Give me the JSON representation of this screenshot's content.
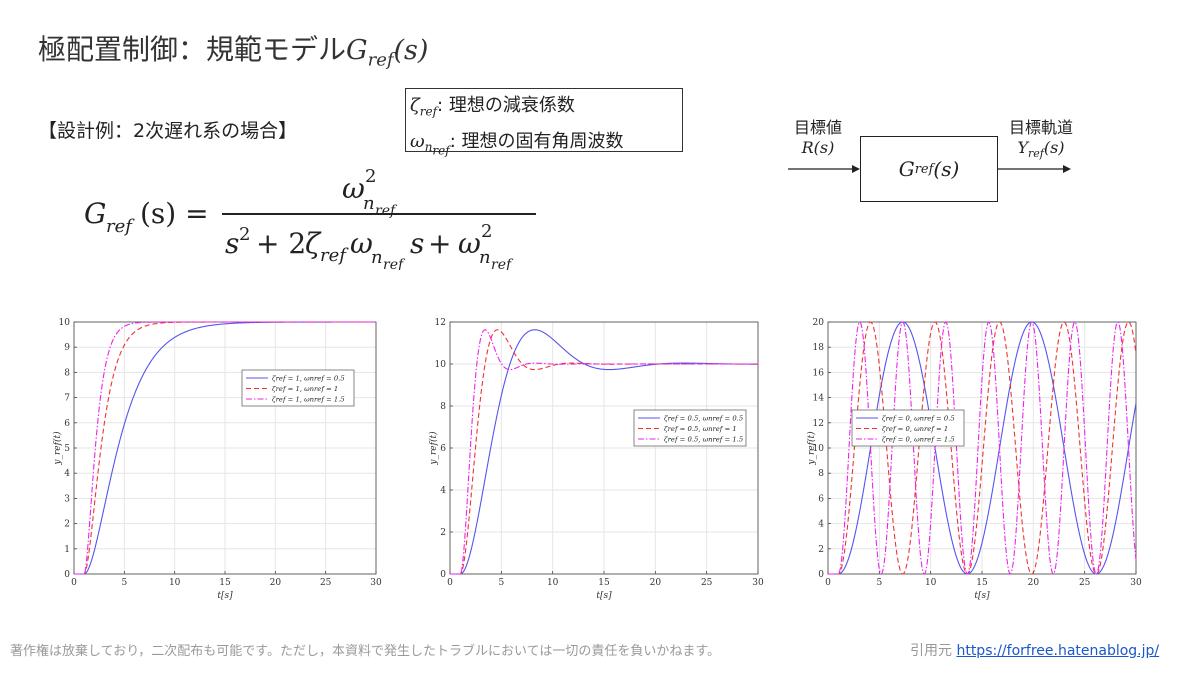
{
  "header": {
    "title_jp": "極配置制御：規範モデル",
    "title_math_main": "G",
    "title_math_sub": "ref",
    "title_math_tail": "(s)"
  },
  "example": {
    "label": "【設計例：2次遅れ系の場合】"
  },
  "definitions": {
    "zeta_symbol": "ζ",
    "zeta_sub": "ref",
    "zeta_text": ": 理想の減衰係数",
    "omega_symbol": "ω",
    "omega_sub": "n",
    "omega_subsub": "ref",
    "omega_text": ": 理想の固有角周波数"
  },
  "block_diagram": {
    "input_label": "目標値",
    "input_signal": "R(s)",
    "block_main": "G",
    "block_sub": "ref",
    "block_tail": "(s)",
    "output_label": "目標軌道",
    "output_main": "Y",
    "output_sub": "ref",
    "output_tail": "(s)"
  },
  "footer": {
    "disclaimer": "著作権は放棄しており，二次配布も可能です。ただし，本資料で発生したトラブルにおいては一切の責任を負いかねます。",
    "source_label": "引用元",
    "source_link": "https://forfree.hatenablog.jp/"
  },
  "colors": {
    "series1": "#5555ee",
    "series2": "#ee3333",
    "series3": "#ee22ee"
  },
  "chart_data": [
    {
      "type": "line",
      "xlabel": "t[s]",
      "ylabel": "y_ref(t)",
      "xlim": [
        0,
        30
      ],
      "ylim": [
        0,
        10
      ],
      "xticks": [
        0,
        5,
        10,
        15,
        20,
        25,
        30
      ],
      "yticks": [
        0,
        1,
        2,
        3,
        4,
        5,
        6,
        7,
        8,
        9,
        10
      ],
      "grid": true,
      "legend_position": "center-right",
      "delay": 1,
      "amplitude": 10,
      "series": [
        {
          "name": "ζref = 1, ωnref = 0.5",
          "zeta": 1,
          "omega": 0.5,
          "style": "solid"
        },
        {
          "name": "ζref = 1, ωnref = 1",
          "zeta": 1,
          "omega": 1,
          "style": "dashed"
        },
        {
          "name": "ζref = 1, ωnref = 1.5",
          "zeta": 1,
          "omega": 1.5,
          "style": "dashdot"
        }
      ]
    },
    {
      "type": "line",
      "xlabel": "t[s]",
      "ylabel": "y_ref(t)",
      "xlim": [
        0,
        30
      ],
      "ylim": [
        0,
        12
      ],
      "xticks": [
        0,
        5,
        10,
        15,
        20,
        25,
        30
      ],
      "yticks": [
        0,
        2,
        4,
        6,
        8,
        10,
        12
      ],
      "grid": true,
      "legend_position": "right",
      "delay": 1,
      "amplitude": 10,
      "series": [
        {
          "name": "ζref = 0.5, ωnref = 0.5",
          "zeta": 0.5,
          "omega": 0.5,
          "style": "solid"
        },
        {
          "name": "ζref = 0.5, ωnref = 1",
          "zeta": 0.5,
          "omega": 1,
          "style": "dashed"
        },
        {
          "name": "ζref = 0.5, ωnref = 1.5",
          "zeta": 0.5,
          "omega": 1.5,
          "style": "dashdot"
        }
      ]
    },
    {
      "type": "line",
      "xlabel": "t[s]",
      "ylabel": "y_ref(t)",
      "xlim": [
        0,
        30
      ],
      "ylim": [
        0,
        20
      ],
      "xticks": [
        0,
        5,
        10,
        15,
        20,
        25,
        30
      ],
      "yticks": [
        0,
        2,
        4,
        6,
        8,
        10,
        12,
        14,
        16,
        18,
        20
      ],
      "grid": true,
      "legend_position": "center-left",
      "delay": 1,
      "amplitude": 10,
      "series": [
        {
          "name": "ζref = 0, ωnref = 0.5",
          "zeta": 0,
          "omega": 0.5,
          "style": "solid"
        },
        {
          "name": "ζref = 0, ωnref = 1",
          "zeta": 0,
          "omega": 1,
          "style": "dashed"
        },
        {
          "name": "ζref = 0, ωnref = 1.5",
          "zeta": 0,
          "omega": 1.5,
          "style": "dashdot"
        }
      ]
    }
  ]
}
